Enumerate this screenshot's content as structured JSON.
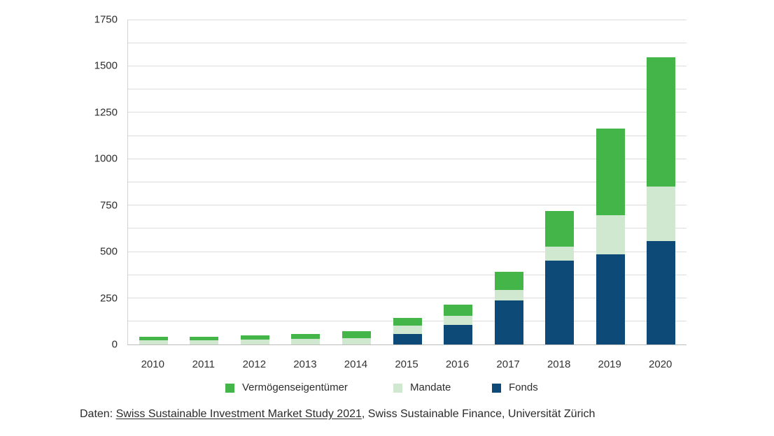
{
  "chart_data": {
    "type": "bar",
    "stacked": true,
    "title": "",
    "xlabel": "",
    "ylabel": "",
    "categories": [
      "2010",
      "2011",
      "2012",
      "2013",
      "2014",
      "2015",
      "2016",
      "2017",
      "2018",
      "2019",
      "2020"
    ],
    "series": [
      {
        "name": "Fonds",
        "color": "#0d4a77",
        "values": [
          0,
          0,
          0,
          0,
          0,
          56,
          104,
          238,
          452,
          485,
          557
        ]
      },
      {
        "name": "Mandate",
        "color": "#d0e8d0",
        "values": [
          23,
          21,
          27,
          32,
          34,
          45,
          50,
          56,
          75,
          210,
          293
        ]
      },
      {
        "name": "Vermögenseigentümer",
        "color": "#43b549",
        "values": [
          18,
          19,
          21,
          23,
          37,
          41,
          62,
          96,
          190,
          468,
          696
        ]
      }
    ],
    "totals": [
      41,
      40,
      48,
      55,
      71,
      142,
      216,
      390,
      717,
      1163,
      1546
    ],
    "ylim": [
      0,
      1750
    ],
    "ytick_step": 250,
    "gridline_step": 125,
    "grid": true,
    "legend_position": "bottom",
    "stack_order": "bottom-to-top: Fonds, Mandate, Vermögenseigentümer"
  },
  "legend": {
    "items": [
      {
        "label": "Vermögenseigentümer",
        "series": "Vermögenseigentümer"
      },
      {
        "label": "Mandate",
        "series": "Mandate"
      },
      {
        "label": "Fonds",
        "series": "Fonds"
      }
    ]
  },
  "caption": {
    "prefix": "Daten: ",
    "link_text": "Swiss Sustainable Investment Market Study 2021",
    "suffix": ", Swiss Sustainable Finance, Universität Zürich"
  }
}
